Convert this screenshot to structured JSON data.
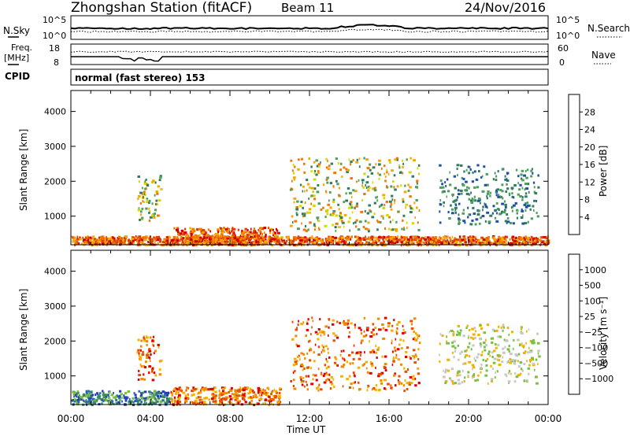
{
  "header": {
    "title": "Zhongshan Station (fitACF)",
    "beam": "Beam 11",
    "date": "24/Nov/2016"
  },
  "noise_panel": {
    "left_label": "N.Sky",
    "right_label": "N.Search",
    "left_ticks": [
      "10^5",
      "10^0"
    ],
    "right_ticks": [
      "10^5",
      "10^0"
    ]
  },
  "freq_panel": {
    "left_label_line1": "Freq.",
    "left_label_line2": "[MHz]",
    "right_label": "Nave",
    "left_ticks": [
      "18",
      "8"
    ],
    "right_ticks": [
      "60",
      "0"
    ],
    "cpid_label": "CPID",
    "cpid_text": "normal (fast stereo) 153"
  },
  "colors": {
    "power_scale": [
      "#0000ff",
      "#1f4fa8",
      "#2e7d5b",
      "#4fa060",
      "#d6d900",
      "#f5a800",
      "#f07800",
      "#e04000",
      "#d40000"
    ],
    "velocity_scale": [
      "#1e3fb0",
      "#2f6ab0",
      "#3a8a5a",
      "#7ac040",
      "#c8c8c8",
      "#f5b000",
      "#f08a00",
      "#e85000",
      "#e00000"
    ]
  },
  "chart_data": [
    {
      "type": "heatmap",
      "title": "",
      "ylabel": "Slant Range [km]",
      "xlabel": "",
      "x_ticks": [
        "00:00",
        "04:00",
        "08:00",
        "12:00",
        "16:00",
        "20:00",
        "00:00"
      ],
      "y_ticks": [
        "1000",
        "2000",
        "3000",
        "4000"
      ],
      "ylim": [
        180,
        4600
      ],
      "xlim_hours": [
        0,
        24
      ],
      "colorbar": {
        "label": "Power [dB]",
        "ticks": [
          "4",
          "8",
          "12",
          "16",
          "20",
          "24",
          "28"
        ]
      },
      "scatter_regions": [
        {
          "t_start": 0.0,
          "t_end": 24.0,
          "range_start": 200,
          "range_end": 450,
          "level": "high"
        },
        {
          "t_start": 3.3,
          "t_end": 4.5,
          "range_start": 900,
          "range_end": 2200,
          "level": "mid"
        },
        {
          "t_start": 5.0,
          "t_end": 10.5,
          "range_start": 200,
          "range_end": 700,
          "level": "high"
        },
        {
          "t_start": 11.0,
          "t_end": 17.5,
          "range_start": 600,
          "range_end": 2700,
          "level": "mid"
        },
        {
          "t_start": 18.5,
          "t_end": 23.5,
          "range_start": 800,
          "range_end": 2500,
          "level": "low"
        }
      ]
    },
    {
      "type": "heatmap",
      "title": "",
      "ylabel": "Slant Range [km]",
      "xlabel": "Time UT",
      "x_ticks": [
        "00:00",
        "04:00",
        "08:00",
        "12:00",
        "16:00",
        "20:00",
        "00:00"
      ],
      "y_ticks": [
        "1000",
        "2000",
        "3000",
        "4000"
      ],
      "ylim": [
        180,
        4600
      ],
      "xlim_hours": [
        0,
        24
      ],
      "colorbar": {
        "label": "Velocity [m s⁻¹]",
        "ticks": [
          "1000",
          "500",
          "100",
          "25",
          "−25",
          "−100",
          "−500",
          "−1000"
        ]
      },
      "scatter_regions": [
        {
          "t_start": 0.0,
          "t_end": 5.0,
          "range_start": 200,
          "range_end": 600,
          "level": "positive"
        },
        {
          "t_start": 3.3,
          "t_end": 4.5,
          "range_start": 900,
          "range_end": 2200,
          "level": "negative"
        },
        {
          "t_start": 5.0,
          "t_end": 10.5,
          "range_start": 200,
          "range_end": 700,
          "level": "negative"
        },
        {
          "t_start": 11.0,
          "t_end": 17.5,
          "range_start": 600,
          "range_end": 2700,
          "level": "negative"
        },
        {
          "t_start": 18.5,
          "t_end": 23.5,
          "range_start": 800,
          "range_end": 2500,
          "level": "zero"
        }
      ]
    }
  ]
}
